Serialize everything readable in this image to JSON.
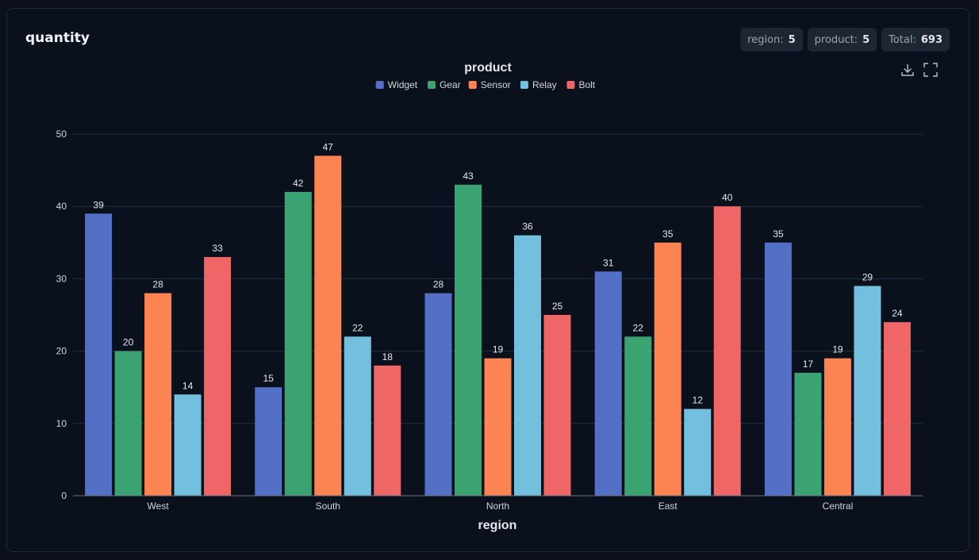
{
  "card": {
    "title": "quantity",
    "badges": [
      {
        "label": "region:",
        "value": "5"
      },
      {
        "label": "product:",
        "value": "5"
      },
      {
        "label": "Total:",
        "value": "693"
      }
    ]
  },
  "toolbar": {
    "download_icon": "download-icon",
    "fullscreen_icon": "fullscreen-icon"
  },
  "chart_data": {
    "type": "bar",
    "title": "product",
    "xlabel": "region",
    "ylabel": "",
    "categories": [
      "West",
      "South",
      "North",
      "East",
      "Central"
    ],
    "series": [
      {
        "name": "Widget",
        "color": "#5470c6",
        "values": [
          39,
          15,
          28,
          31,
          35
        ]
      },
      {
        "name": "Gear",
        "color": "#3ba272",
        "values": [
          20,
          42,
          43,
          22,
          17
        ]
      },
      {
        "name": "Sensor",
        "color": "#fc8452",
        "values": [
          28,
          47,
          19,
          35,
          19
        ]
      },
      {
        "name": "Relay",
        "color": "#73c0de",
        "values": [
          14,
          22,
          36,
          12,
          29
        ]
      },
      {
        "name": "Bolt",
        "color": "#ee6666",
        "values": [
          33,
          18,
          25,
          40,
          24
        ]
      }
    ],
    "ylim": [
      0,
      50
    ],
    "yticks": [
      0,
      10,
      20,
      30,
      40,
      50
    ],
    "grid": true,
    "legend_position": "top-center",
    "data_labels": true
  }
}
